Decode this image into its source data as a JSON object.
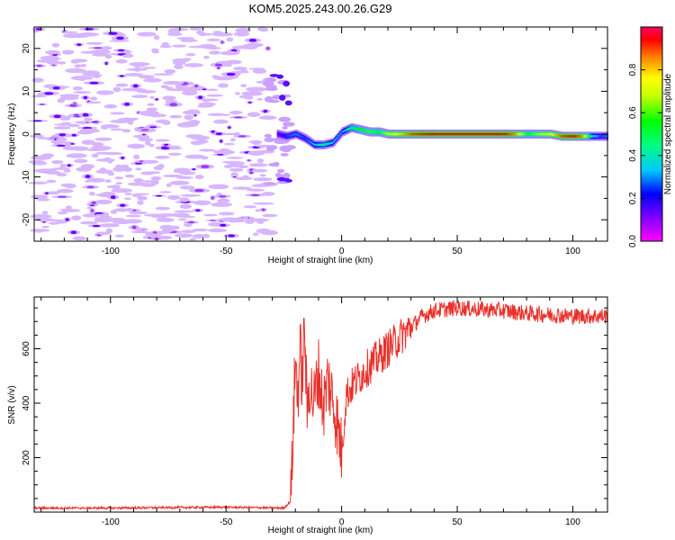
{
  "figure": {
    "title": "KOM5.2025.243.00.26.G29"
  },
  "chart_data": [
    {
      "type": "heatmap",
      "xlabel": "Height of straight line (km)",
      "ylabel": "Frequency (Hz)",
      "xlim": [
        -133,
        115
      ],
      "ylim": [
        -25,
        25
      ],
      "xticks": [
        -100,
        -50,
        0,
        50,
        100
      ],
      "yticks": [
        -20,
        -10,
        0,
        10,
        20
      ],
      "colorbar": {
        "label": "Normalized spectral amplitude",
        "range": [
          0,
          1
        ],
        "ticks": [
          0.0,
          0.2,
          0.4,
          0.6,
          0.8
        ],
        "tick_labels": [
          "0.0",
          "0.2",
          "0.4",
          "0.6",
          "0.8"
        ],
        "colormap": "rainbow"
      },
      "ridge": [
        {
          "x": -28,
          "y": 0.0,
          "a": 0.15
        },
        {
          "x": -24,
          "y": -0.5,
          "a": 0.25
        },
        {
          "x": -20,
          "y": 0.0,
          "a": 0.3
        },
        {
          "x": -16,
          "y": -1.0,
          "a": 0.25
        },
        {
          "x": -12,
          "y": -2.5,
          "a": 0.35
        },
        {
          "x": -8,
          "y": -2.5,
          "a": 0.45
        },
        {
          "x": -4,
          "y": -2.0,
          "a": 0.35
        },
        {
          "x": 0,
          "y": 0.5,
          "a": 0.3
        },
        {
          "x": 4,
          "y": 1.5,
          "a": 0.5
        },
        {
          "x": 8,
          "y": 1.0,
          "a": 0.55
        },
        {
          "x": 12,
          "y": 0.5,
          "a": 0.6
        },
        {
          "x": 16,
          "y": 0.5,
          "a": 0.55
        },
        {
          "x": 20,
          "y": 0.0,
          "a": 0.7
        },
        {
          "x": 25,
          "y": 0.0,
          "a": 0.8
        },
        {
          "x": 30,
          "y": 0.0,
          "a": 0.9
        },
        {
          "x": 40,
          "y": 0.0,
          "a": 0.95
        },
        {
          "x": 50,
          "y": 0.0,
          "a": 0.95
        },
        {
          "x": 60,
          "y": 0.0,
          "a": 0.95
        },
        {
          "x": 70,
          "y": 0.0,
          "a": 0.95
        },
        {
          "x": 75,
          "y": 0.0,
          "a": 0.85
        },
        {
          "x": 80,
          "y": 0.0,
          "a": 0.55
        },
        {
          "x": 85,
          "y": 0.0,
          "a": 0.65
        },
        {
          "x": 90,
          "y": 0.0,
          "a": 0.75
        },
        {
          "x": 95,
          "y": -0.5,
          "a": 0.9
        },
        {
          "x": 100,
          "y": -0.5,
          "a": 0.95
        },
        {
          "x": 104,
          "y": -0.5,
          "a": 0.85
        },
        {
          "x": 108,
          "y": -0.5,
          "a": 0.4
        },
        {
          "x": 112,
          "y": -0.5,
          "a": 0.25
        },
        {
          "x": 115,
          "y": -0.5,
          "a": 0.3
        }
      ]
    },
    {
      "type": "line",
      "xlabel": "Height of straight line (km)",
      "ylabel": "SNR (v/v)",
      "xlim": [
        -133,
        115
      ],
      "ylim": [
        0,
        790
      ],
      "xticks": [
        -100,
        -50,
        0,
        50,
        100
      ],
      "yticks": [
        200,
        400,
        600
      ],
      "series": [
        {
          "color": "#e8302a",
          "x": [
            -133,
            -100,
            -50,
            -25,
            -22,
            -21,
            -20,
            -19,
            -18,
            -17,
            -16,
            -15,
            -14,
            -12,
            -10,
            -8,
            -6,
            -4,
            -2,
            0,
            2,
            5,
            10,
            15,
            20,
            25,
            30,
            35,
            40,
            50,
            60,
            70,
            80,
            90,
            100,
            110,
            115
          ],
          "y": [
            15,
            15,
            18,
            15,
            40,
            300,
            560,
            420,
            600,
            480,
            700,
            350,
            480,
            400,
            520,
            380,
            490,
            420,
            330,
            220,
            430,
            470,
            520,
            560,
            600,
            640,
            680,
            720,
            740,
            750,
            745,
            740,
            730,
            725,
            720,
            720,
            720
          ]
        }
      ]
    }
  ]
}
